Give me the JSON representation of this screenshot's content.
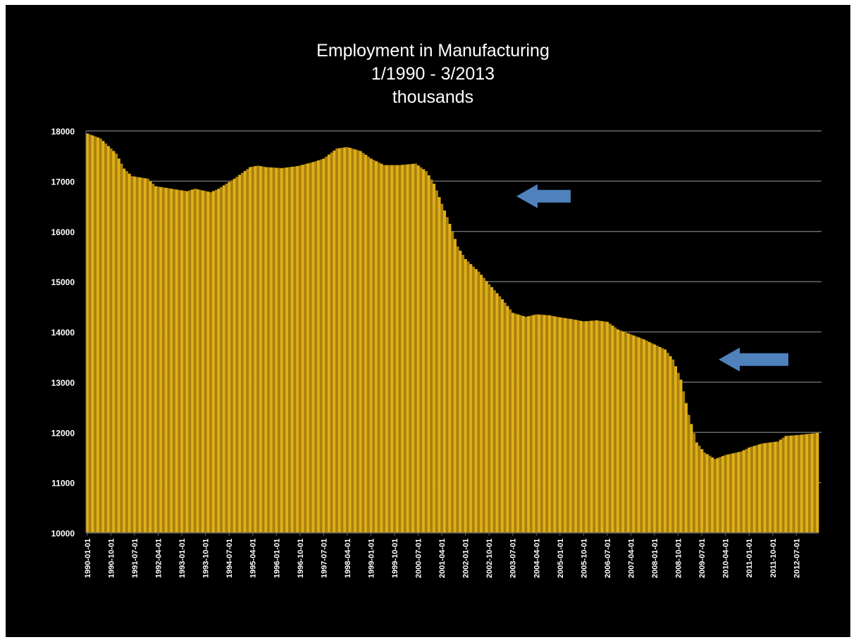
{
  "chart_data": {
    "type": "bar",
    "title_lines": [
      "Employment in Manufacturing",
      "1/1990 - 3/2013",
      "thousands"
    ],
    "xlabel": "",
    "ylabel": "",
    "ylim": [
      10000,
      18000
    ],
    "yticks": [
      "18000",
      "17000",
      "16000",
      "15000",
      "14000",
      "13000",
      "12000",
      "11000",
      "10000"
    ],
    "grid": true,
    "x_start": "1990-01",
    "x_end": "2013-03",
    "frequency": "monthly",
    "xtick_labels": [
      "1990-01-01",
      "1990-10-01",
      "1991-07-01",
      "1992-04-01",
      "1993-01-01",
      "1993-10-01",
      "1994-07-01",
      "1995-04-01",
      "1996-01-01",
      "1996-10-01",
      "1997-07-01",
      "1998-04-01",
      "1999-01-01",
      "1999-10-01",
      "2000-07-01",
      "2001-04-01",
      "2002-01-01",
      "2002-10-01",
      "2003-07-01",
      "2004-04-01",
      "2005-01-01",
      "2005-10-01",
      "2006-07-01",
      "2007-04-01",
      "2008-01-01",
      "2008-10-01",
      "2009-07-01",
      "2010-04-01",
      "2011-01-01",
      "2011-10-01",
      "2012-07-01"
    ],
    "anchors": [
      [
        "1990-01",
        17950
      ],
      [
        "1990-06",
        17850
      ],
      [
        "1990-12",
        17550
      ],
      [
        "1991-03",
        17250
      ],
      [
        "1991-06",
        17100
      ],
      [
        "1991-12",
        17050
      ],
      [
        "1992-03",
        16900
      ],
      [
        "1992-09",
        16850
      ],
      [
        "1993-03",
        16800
      ],
      [
        "1993-06",
        16850
      ],
      [
        "1993-12",
        16780
      ],
      [
        "1994-03",
        16850
      ],
      [
        "1994-09",
        17050
      ],
      [
        "1995-03",
        17280
      ],
      [
        "1995-06",
        17310
      ],
      [
        "1995-09",
        17280
      ],
      [
        "1996-03",
        17260
      ],
      [
        "1996-09",
        17300
      ],
      [
        "1997-03",
        17380
      ],
      [
        "1997-07",
        17450
      ],
      [
        "1997-12",
        17650
      ],
      [
        "1998-04",
        17680
      ],
      [
        "1998-09",
        17600
      ],
      [
        "1999-01",
        17450
      ],
      [
        "1999-06",
        17320
      ],
      [
        "1999-12",
        17320
      ],
      [
        "2000-06",
        17350
      ],
      [
        "2000-10",
        17200
      ],
      [
        "2001-01",
        16950
      ],
      [
        "2001-04",
        16550
      ],
      [
        "2001-07",
        16150
      ],
      [
        "2001-10",
        15700
      ],
      [
        "2002-01",
        15450
      ],
      [
        "2002-06",
        15200
      ],
      [
        "2002-10",
        14950
      ],
      [
        "2003-03",
        14650
      ],
      [
        "2003-07",
        14380
      ],
      [
        "2003-12",
        14300
      ],
      [
        "2004-04",
        14350
      ],
      [
        "2004-09",
        14330
      ],
      [
        "2005-01",
        14290
      ],
      [
        "2005-06",
        14250
      ],
      [
        "2005-10",
        14210
      ],
      [
        "2006-03",
        14230
      ],
      [
        "2006-07",
        14200
      ],
      [
        "2006-11",
        14050
      ],
      [
        "2007-04",
        13950
      ],
      [
        "2007-09",
        13850
      ],
      [
        "2008-01",
        13750
      ],
      [
        "2008-05",
        13650
      ],
      [
        "2008-08",
        13450
      ],
      [
        "2008-11",
        13050
      ],
      [
        "2009-02",
        12350
      ],
      [
        "2009-05",
        11800
      ],
      [
        "2009-08",
        11600
      ],
      [
        "2009-12",
        11470
      ],
      [
        "2010-04",
        11550
      ],
      [
        "2010-10",
        11620
      ],
      [
        "2011-01",
        11700
      ],
      [
        "2011-06",
        11780
      ],
      [
        "2011-12",
        11820
      ],
      [
        "2012-03",
        11930
      ],
      [
        "2012-08",
        11950
      ],
      [
        "2013-03",
        11990
      ]
    ],
    "annotations": [
      {
        "shape": "arrow",
        "direction": "left",
        "color": "#4F81BD",
        "y": 16700
      },
      {
        "shape": "arrow",
        "direction": "left",
        "color": "#4F81BD",
        "y": 13450
      }
    ],
    "colors": {
      "background": "#000000",
      "bar_fill": "#E0AF1A",
      "bar_stripe": "#A8820E",
      "gridline": "#6A6A6A",
      "text": "#FFFFFF",
      "arrow": "#4F81BD"
    }
  }
}
